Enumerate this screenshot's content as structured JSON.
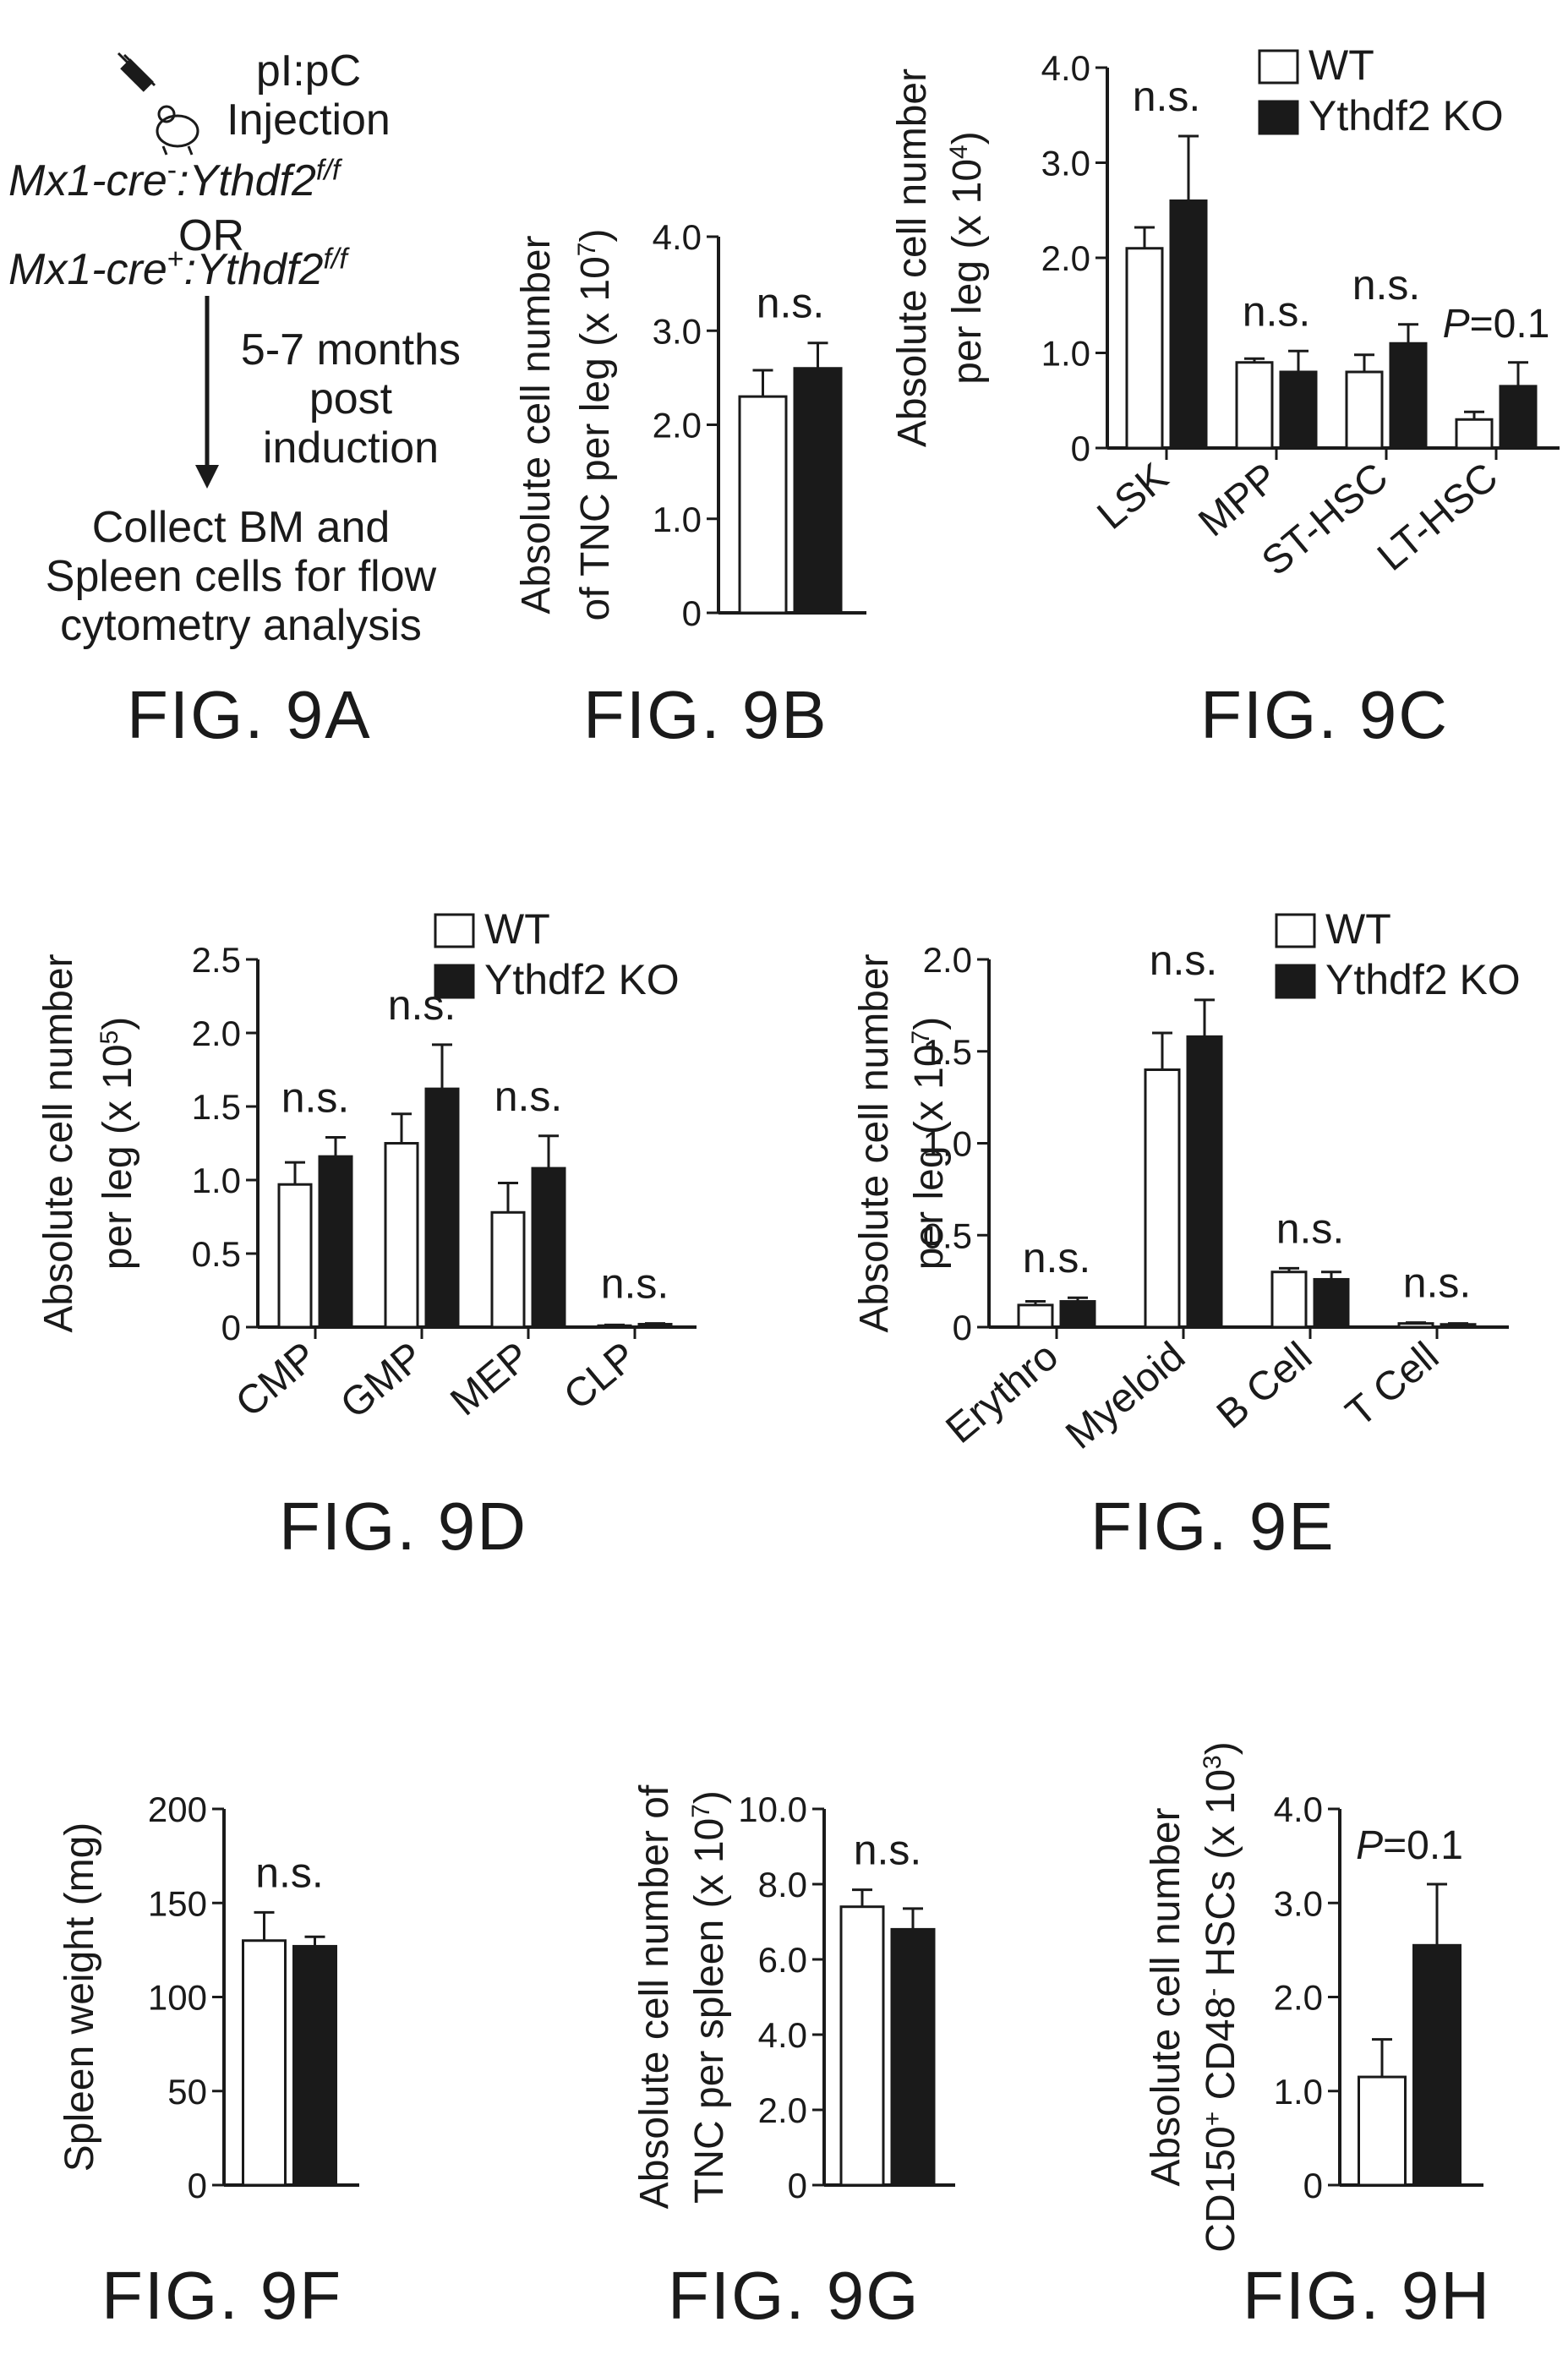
{
  "panel_a": {
    "line1": "pI:pC",
    "line2": "Injection",
    "mouse1_prefix": "Mx1-cre",
    "mouse1_mid": ":Ythdf2",
    "mouse1_sup": "f/f",
    "or": "OR",
    "mouse2_prefix": "Mx1-cre",
    "mouse2_mid": ":Ythdf2",
    "mouse2_sup": "f/f",
    "minus": "-",
    "plus": "+",
    "step1": "5-7 months",
    "step2": "post",
    "step3": "induction",
    "collect1": "Collect BM and",
    "collect2": "Spleen cells for flow",
    "collect3": "cytometry analysis"
  },
  "labels": {
    "a": "FIG. 9A",
    "b": "FIG. 9B",
    "c": "FIG. 9C",
    "d": "FIG. 9D",
    "e": "FIG. 9E",
    "f": "FIG. 9F",
    "g": "FIG. 9G",
    "h": "FIG. 9H"
  },
  "colors": {
    "wt": "#ffffff",
    "ko": "#1a1a1a",
    "ink": "#1a1a1a"
  },
  "chart_data": [
    {
      "id": "b",
      "type": "bar",
      "ylabel1": "Absolute cell number",
      "ylabel2": "of TNC per leg (x 10",
      "ylabel_exp": "7",
      "ylabel_tail": ")",
      "ylim": [
        0,
        4
      ],
      "yticks": [
        "0",
        "1.0",
        "2.0",
        "3.0",
        "4.0"
      ],
      "categories": [
        ""
      ],
      "series": [
        {
          "values": [
            2.3
          ],
          "errors": [
            0.28
          ]
        },
        {
          "values": [
            2.6
          ],
          "errors": [
            0.27
          ]
        }
      ],
      "annotations": [
        "n.s."
      ]
    },
    {
      "id": "c",
      "type": "bar",
      "ylabel1": "Absolute cell number",
      "ylabel2": "per leg (x 10",
      "ylabel_exp": "4",
      "ylabel_tail": ")",
      "ylim": [
        0,
        4
      ],
      "yticks": [
        "0",
        "1.0",
        "2.0",
        "3.0",
        "4.0"
      ],
      "categories": [
        "LSK",
        "MPP",
        "ST-HSC",
        "LT-HSC"
      ],
      "series": [
        {
          "name": "WT",
          "values": [
            2.1,
            0.9,
            0.8,
            0.3
          ],
          "errors": [
            0.22,
            0.04,
            0.18,
            0.08
          ]
        },
        {
          "name": "Ythdf2 KO",
          "values": [
            2.6,
            0.8,
            1.1,
            0.65
          ],
          "errors": [
            0.68,
            0.22,
            0.2,
            0.25
          ]
        }
      ],
      "annotations": [
        "n.s.",
        "n.s.",
        "n.s.",
        "P=0.1"
      ],
      "legend": "top-right"
    },
    {
      "id": "d",
      "type": "bar",
      "ylabel1": "Absolute cell number",
      "ylabel2": "per leg (x 10",
      "ylabel_exp": "5",
      "ylabel_tail": ")",
      "ylim": [
        0,
        2.5
      ],
      "yticks": [
        "0",
        "0.5",
        "1.0",
        "1.5",
        "2.0",
        "2.5"
      ],
      "categories": [
        "CMP",
        "GMP",
        "MEP",
        "CLP"
      ],
      "series": [
        {
          "name": "WT",
          "values": [
            0.97,
            1.25,
            0.78,
            0.01
          ],
          "errors": [
            0.15,
            0.2,
            0.2,
            0.005
          ]
        },
        {
          "name": "Ythdf2 KO",
          "values": [
            1.16,
            1.62,
            1.08,
            0.02
          ],
          "errors": [
            0.13,
            0.3,
            0.22,
            0.005
          ]
        }
      ],
      "annotations": [
        "n.s.",
        "n.s.",
        "n.s.",
        "n.s."
      ],
      "legend": "top-right"
    },
    {
      "id": "e",
      "type": "bar",
      "ylabel1": "Absolute cell number",
      "ylabel2": "per leg (x 10",
      "ylabel_exp": "7",
      "ylabel_tail": ")",
      "ylim": [
        0,
        2
      ],
      "yticks": [
        "0",
        "0.5",
        "1.0",
        "1.5",
        "2.0"
      ],
      "categories": [
        "Erythro",
        "Myeloid",
        "B Cell",
        "T Cell"
      ],
      "series": [
        {
          "name": "WT",
          "values": [
            0.12,
            1.4,
            0.3,
            0.02
          ],
          "errors": [
            0.02,
            0.2,
            0.02,
            0.005
          ]
        },
        {
          "name": "Ythdf2 KO",
          "values": [
            0.14,
            1.58,
            0.26,
            0.015
          ],
          "errors": [
            0.02,
            0.2,
            0.04,
            0.005
          ]
        }
      ],
      "annotations": [
        "n.s.",
        "n.s.",
        "n.s.",
        "n.s."
      ],
      "legend": "top-right"
    },
    {
      "id": "f",
      "type": "bar",
      "ylabel1": "Spleen weight (mg)",
      "ylim": [
        0,
        200
      ],
      "yticks": [
        "0",
        "50",
        "100",
        "150",
        "200"
      ],
      "categories": [
        ""
      ],
      "series": [
        {
          "values": [
            130
          ],
          "errors": [
            15
          ]
        },
        {
          "values": [
            127
          ],
          "errors": [
            5
          ]
        }
      ],
      "annotations": [
        "n.s."
      ]
    },
    {
      "id": "g",
      "type": "bar",
      "ylabel1": "Absolute cell number of",
      "ylabel2": "TNC per spleen (x 10",
      "ylabel_exp": "7",
      "ylabel_tail": ")",
      "ylim": [
        0,
        10
      ],
      "yticks": [
        "0",
        "2.0",
        "4.0",
        "6.0",
        "8.0",
        "10.0"
      ],
      "categories": [
        ""
      ],
      "series": [
        {
          "values": [
            7.4
          ],
          "errors": [
            0.45
          ]
        },
        {
          "values": [
            6.8
          ],
          "errors": [
            0.55
          ]
        }
      ],
      "annotations": [
        "n.s."
      ]
    },
    {
      "id": "h",
      "type": "bar",
      "ylabel1": "Absolute cell number",
      "ylabel2_pre": "CD150",
      "ylabel2_sup1": "+",
      "ylabel2_mid": " CD48",
      "ylabel2_sup2": "-",
      "ylabel2": " HSCs (x 10",
      "ylabel_exp": "3",
      "ylabel_tail": ")",
      "ylim": [
        0,
        4
      ],
      "yticks": [
        "0",
        "1.0",
        "2.0",
        "3.0",
        "4.0"
      ],
      "categories": [
        ""
      ],
      "series": [
        {
          "values": [
            1.15
          ],
          "errors": [
            0.4
          ]
        },
        {
          "values": [
            2.55
          ],
          "errors": [
            0.65
          ]
        }
      ],
      "annotations": [
        "P=0.1"
      ]
    }
  ]
}
